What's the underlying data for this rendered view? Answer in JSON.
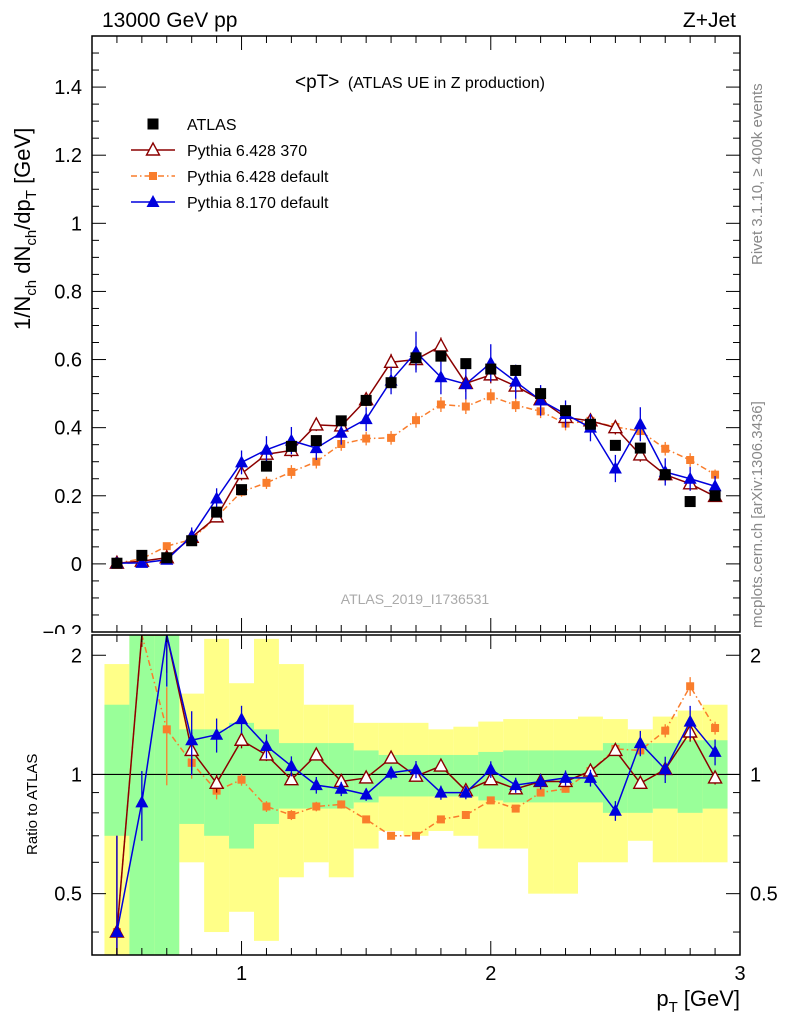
{
  "header": {
    "energy_label": "13000 GeV pp",
    "process_label": "Z+Jet"
  },
  "side_text": {
    "rivet": "Rivet 3.1.10, ≥ 400k events",
    "mcplots": "mcplots.cern.ch [arXiv:1306.3436]"
  },
  "chart_data": {
    "type": "scatter",
    "title": "<pT>",
    "subtitle": "(ATLAS UE in Z production)",
    "analysis_id": "ATLAS_2019_I1736531",
    "xlabel": "p",
    "xlabel_sub": "T",
    "xlabel_unit": "[GeV]",
    "ylabel_main": "1/N",
    "ylabel_sub1": "ch",
    "ylabel_mid": " dN",
    "ylabel_sub2": "ch",
    "ylabel_mid2": "/dp",
    "ylabel_sub3": "T",
    "ylabel_unit": " [GeV]",
    "ratio_ylabel": "Ratio to ATLAS",
    "xlim": [
      0.4,
      3.0
    ],
    "ylim": [
      -0.2,
      1.55
    ],
    "ratio_ylim": [
      0.35,
      2.25
    ],
    "x_ticks": [
      "1",
      "2",
      "3"
    ],
    "y_ticks": [
      "0",
      "0.2",
      "0.4",
      "0.6",
      "0.8",
      "1",
      "1.2",
      "1.4"
    ],
    "y_tick_bottom_partial": "−0.2",
    "ratio_y_ticks": [
      "0.5",
      "1",
      "2"
    ],
    "legend_position": "top-left",
    "x": [
      0.5,
      0.6,
      0.7,
      0.8,
      0.9,
      1.0,
      1.1,
      1.2,
      1.3,
      1.4,
      1.5,
      1.6,
      1.7,
      1.8,
      1.9,
      2.0,
      2.1,
      2.2,
      2.3,
      2.4,
      2.5,
      2.6,
      2.7,
      2.8,
      2.9
    ],
    "series": [
      {
        "name": "ATLAS",
        "color": "#000000",
        "marker": "square",
        "values": [
          0.002,
          0.025,
          0.018,
          0.068,
          0.152,
          0.218,
          0.287,
          0.345,
          0.362,
          0.42,
          0.48,
          0.532,
          0.605,
          0.61,
          0.588,
          0.572,
          0.568,
          0.5,
          0.45,
          0.41,
          0.348,
          0.34,
          0.262,
          0.183,
          0.2
        ]
      },
      {
        "name": "Pythia 6.428 370",
        "color": "#8b0000",
        "marker": "triangle-open",
        "values": [
          0.002,
          0.008,
          0.018,
          0.078,
          0.138,
          0.265,
          0.322,
          0.333,
          0.408,
          0.405,
          0.482,
          0.592,
          0.6,
          0.64,
          0.53,
          0.555,
          0.522,
          0.482,
          0.43,
          0.42,
          0.4,
          0.32,
          0.262,
          0.235,
          0.198
        ]
      },
      {
        "name": "Pythia 6.428 default",
        "color": "#f97d2c",
        "marker": "square-small",
        "dashed": true,
        "values": [
          0.002,
          0.015,
          0.052,
          0.072,
          0.138,
          0.212,
          0.238,
          0.27,
          0.3,
          0.352,
          0.368,
          0.37,
          0.422,
          0.468,
          0.462,
          0.492,
          0.466,
          0.448,
          0.412,
          0.42,
          0.402,
          0.39,
          0.338,
          0.305,
          0.262
        ]
      },
      {
        "name": "Pythia 8.170 default",
        "color": "#0000dd",
        "marker": "triangle-filled",
        "values": [
          0.002,
          0.003,
          0.012,
          0.082,
          0.192,
          0.298,
          0.335,
          0.362,
          0.34,
          0.385,
          0.425,
          0.538,
          0.622,
          0.548,
          0.528,
          0.59,
          0.535,
          0.48,
          0.44,
          0.4,
          0.28,
          0.41,
          0.27,
          0.25,
          0.228
        ]
      }
    ],
    "errors": {
      "Pythia 6.428 370": [
        0.005,
        0.008,
        0.01,
        0.015,
        0.016,
        0.02,
        0.02,
        0.02,
        0.018,
        0.018,
        0.02,
        0.025,
        0.03,
        0.025,
        0.025,
        0.025,
        0.02,
        0.02,
        0.02,
        0.02,
        0.02,
        0.02,
        0.02,
        0.02,
        0.015
      ],
      "Pythia 6.428 default": [
        0.005,
        0.008,
        0.01,
        0.012,
        0.015,
        0.015,
        0.018,
        0.02,
        0.02,
        0.02,
        0.02,
        0.02,
        0.022,
        0.022,
        0.022,
        0.022,
        0.02,
        0.02,
        0.02,
        0.02,
        0.02,
        0.02,
        0.02,
        0.02,
        0.015
      ],
      "Pythia 8.170 default": [
        0.005,
        0.01,
        0.012,
        0.025,
        0.03,
        0.035,
        0.04,
        0.04,
        0.035,
        0.035,
        0.035,
        0.04,
        0.06,
        0.05,
        0.045,
        0.055,
        0.05,
        0.045,
        0.04,
        0.04,
        0.04,
        0.05,
        0.04,
        0.035,
        0.03
      ]
    },
    "ratio": {
      "green_band": [
        [
          0.7,
          1.5
        ],
        [
          0.3,
          2.4
        ],
        [
          0.3,
          2.4
        ],
        [
          0.75,
          1.3
        ],
        [
          0.7,
          1.3
        ],
        [
          0.65,
          1.35
        ],
        [
          0.75,
          1.3
        ],
        [
          0.82,
          1.2
        ],
        [
          0.82,
          1.2
        ],
        [
          0.82,
          1.2
        ],
        [
          0.85,
          1.15
        ],
        [
          0.88,
          1.12
        ],
        [
          0.88,
          1.12
        ],
        [
          0.88,
          1.12
        ],
        [
          0.88,
          1.12
        ],
        [
          0.86,
          1.14
        ],
        [
          0.85,
          1.15
        ],
        [
          0.85,
          1.15
        ],
        [
          0.85,
          1.15
        ],
        [
          0.85,
          1.15
        ],
        [
          0.8,
          1.2
        ],
        [
          0.8,
          1.2
        ],
        [
          0.82,
          1.2
        ],
        [
          0.8,
          1.22
        ],
        [
          0.82,
          1.22
        ]
      ],
      "yellow_band": [
        [
          0.35,
          1.9
        ],
        [
          0.3,
          2.4
        ],
        [
          0.3,
          2.4
        ],
        [
          0.6,
          1.6
        ],
        [
          0.4,
          2.2
        ],
        [
          0.45,
          1.7
        ],
        [
          0.38,
          2.2
        ],
        [
          0.55,
          1.9
        ],
        [
          0.6,
          1.5
        ],
        [
          0.55,
          1.5
        ],
        [
          0.65,
          1.35
        ],
        [
          0.72,
          1.35
        ],
        [
          0.7,
          1.35
        ],
        [
          0.72,
          1.3
        ],
        [
          0.7,
          1.32
        ],
        [
          0.65,
          1.36
        ],
        [
          0.65,
          1.38
        ],
        [
          0.5,
          1.38
        ],
        [
          0.5,
          1.38
        ],
        [
          0.6,
          1.4
        ],
        [
          0.6,
          1.38
        ],
        [
          0.68,
          1.3
        ],
        [
          0.6,
          1.4
        ],
        [
          0.6,
          1.45
        ],
        [
          0.6,
          1.5
        ]
      ],
      "Pythia 6.428 370": [
        0.4,
        2.5,
        2.5,
        1.15,
        0.95,
        1.22,
        1.12,
        0.97,
        1.12,
        0.96,
        0.98,
        1.1,
        0.99,
        1.05,
        0.91,
        0.97,
        0.92,
        0.96,
        0.96,
        1.02,
        1.15,
        0.95,
        1.03,
        1.28,
        0.98
      ],
      "Pythia 6.428 default": [
        0.4,
        2.5,
        1.3,
        1.07,
        0.91,
        0.97,
        0.83,
        0.79,
        0.83,
        0.84,
        0.77,
        0.7,
        0.7,
        0.77,
        0.79,
        0.86,
        0.82,
        0.9,
        0.92,
        1.02,
        1.16,
        1.15,
        1.29,
        1.67,
        1.31
      ],
      "Pythia 8.170 default": [
        0.4,
        0.85,
        2.5,
        1.22,
        1.26,
        1.38,
        1.18,
        1.05,
        0.94,
        0.92,
        0.89,
        1.01,
        1.03,
        0.9,
        0.9,
        1.03,
        0.94,
        0.96,
        0.98,
        0.98,
        0.81,
        1.2,
        1.03,
        1.36,
        1.14
      ]
    }
  }
}
